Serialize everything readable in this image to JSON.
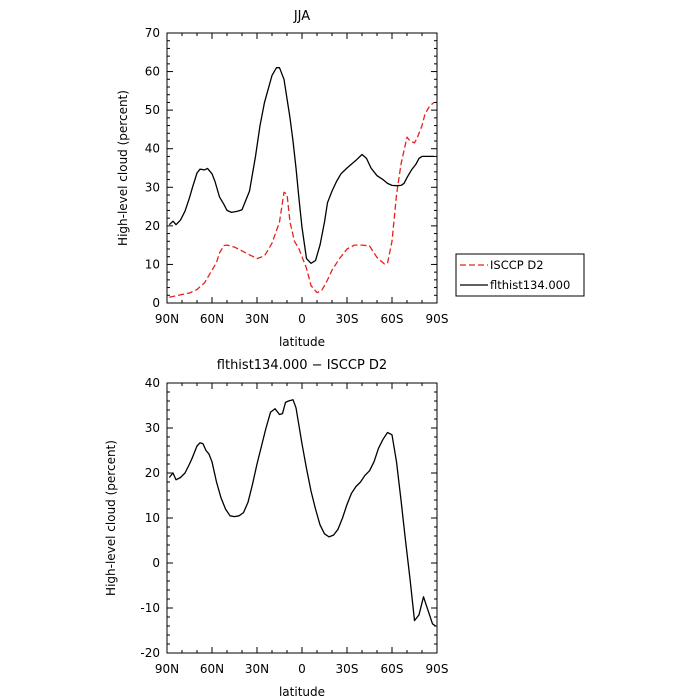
{
  "chart_data": [
    {
      "type": "line",
      "title": "JJA",
      "xlabel": "latitude",
      "ylabel": "High-level cloud (percent)",
      "xlim": [
        90,
        -90
      ],
      "ylim": [
        0,
        70
      ],
      "xticks": [
        {
          "value": 90,
          "label": "90N"
        },
        {
          "value": 60,
          "label": "60N"
        },
        {
          "value": 30,
          "label": "30N"
        },
        {
          "value": 0,
          "label": "0"
        },
        {
          "value": -30,
          "label": "30S"
        },
        {
          "value": -60,
          "label": "60S"
        },
        {
          "value": -90,
          "label": "90S"
        }
      ],
      "yticks": [
        0,
        10,
        20,
        30,
        40,
        50,
        60,
        70
      ],
      "legend_position": "outside-right",
      "series": [
        {
          "name": "ISCCP D2",
          "color": "#e8201c",
          "dash": "dashed",
          "x": [
            88.5,
            85,
            80,
            75,
            70,
            65,
            60,
            57,
            55,
            52,
            50,
            45,
            40,
            35,
            30,
            25,
            20,
            15,
            12,
            10,
            8,
            5,
            2,
            0,
            -3,
            -6,
            -10,
            -13,
            -15,
            -17,
            -20,
            -25,
            -30,
            -35,
            -40,
            -45,
            -50,
            -55,
            -57,
            -60,
            -63,
            -66,
            -70,
            -72,
            -75,
            -77,
            -80,
            -82,
            -85,
            -88
          ],
          "y": [
            1.5,
            1.8,
            2.2,
            2.6,
            3.5,
            5.2,
            8.5,
            10.5,
            13,
            14.9,
            15,
            14.5,
            13.5,
            12.5,
            11.5,
            12.2,
            15.5,
            21,
            28.7,
            28.2,
            21,
            16,
            14,
            12,
            9,
            4.5,
            2.7,
            3.2,
            4.5,
            6,
            8.5,
            11.5,
            14,
            15,
            15,
            14.8,
            11.8,
            10.1,
            10.3,
            16,
            28,
            36,
            43,
            42,
            41.5,
            43,
            46,
            49,
            51,
            52
          ]
        },
        {
          "name": "flthist134.000",
          "color": "#000000",
          "dash": "solid",
          "x": [
            88.5,
            86,
            84,
            81,
            78,
            75,
            73,
            70,
            68,
            65,
            63,
            60,
            58,
            55,
            52,
            50,
            47,
            43,
            40,
            35,
            31,
            28,
            25,
            20,
            17,
            15,
            12,
            10,
            8,
            6,
            4,
            2,
            0,
            -3,
            -6,
            -9,
            -12,
            -15,
            -17,
            -20,
            -23,
            -26,
            -30,
            -33,
            -36,
            -40,
            -43,
            -46,
            -50,
            -54,
            -57,
            -60,
            -63,
            -66,
            -68,
            -70,
            -73,
            -76,
            -78,
            -80,
            -82,
            -84,
            -86,
            -88
          ],
          "y": [
            20.3,
            21.2,
            20.3,
            21.5,
            23.8,
            27.3,
            30,
            33.7,
            34.7,
            34.5,
            34.9,
            33.5,
            31.5,
            27.5,
            25.5,
            24,
            23.5,
            23.8,
            24.2,
            29,
            38,
            46,
            52,
            59,
            61,
            61,
            58,
            53,
            48,
            42,
            35,
            27,
            19.6,
            11.5,
            10.3,
            11,
            15,
            21,
            26,
            29,
            31.5,
            33.5,
            35,
            36,
            37,
            38.5,
            37.5,
            35,
            33,
            32,
            31,
            30.5,
            30.4,
            30.5,
            31,
            32.5,
            34.5,
            36,
            37.5,
            38,
            38,
            38,
            38,
            38
          ]
        }
      ]
    },
    {
      "type": "line",
      "title": "flthist134.000 − ISCCP D2",
      "xlabel": "latitude",
      "ylabel": "High-level cloud (percent)",
      "xlim": [
        90,
        -90
      ],
      "ylim": [
        -20,
        40
      ],
      "xticks": [
        {
          "value": 90,
          "label": "90N"
        },
        {
          "value": 60,
          "label": "60N"
        },
        {
          "value": 30,
          "label": "30N"
        },
        {
          "value": 0,
          "label": "0"
        },
        {
          "value": -30,
          "label": "30S"
        },
        {
          "value": -60,
          "label": "60S"
        },
        {
          "value": -90,
          "label": "90S"
        }
      ],
      "yticks": [
        -20,
        -10,
        0,
        10,
        20,
        30,
        40
      ],
      "series": [
        {
          "name": "",
          "color": "#000000",
          "dash": "solid",
          "x": [
            88.5,
            86,
            84,
            81,
            78,
            75,
            73,
            70,
            68,
            66,
            64,
            62,
            60,
            57,
            54,
            51,
            48,
            45,
            42,
            39,
            36,
            33,
            30,
            27,
            24,
            21,
            18,
            15,
            13,
            11,
            9,
            6,
            4,
            2,
            0,
            -3,
            -6,
            -9,
            -12,
            -15,
            -18,
            -21,
            -24,
            -27,
            -30,
            -33,
            -36,
            -39,
            -42,
            -45,
            -48,
            -51,
            -54,
            -57,
            -60,
            -63,
            -66,
            -69,
            -72,
            -75,
            -78,
            -81,
            -84,
            -87,
            -89
          ],
          "y": [
            19,
            20,
            18.5,
            19,
            20,
            22,
            23.5,
            26,
            26.7,
            26.5,
            25,
            24.2,
            22.5,
            18,
            14.5,
            12,
            10.5,
            10.3,
            10.5,
            11.2,
            13.5,
            17.5,
            22,
            26,
            30,
            33.5,
            34.3,
            33,
            33.2,
            35.7,
            36,
            36.3,
            34.5,
            30.5,
            26.5,
            21,
            16,
            12,
            8.5,
            6.5,
            5.8,
            6.2,
            7.5,
            10,
            13,
            15.5,
            17,
            18,
            19.5,
            20.5,
            22.5,
            25.5,
            27.5,
            29,
            28.5,
            22.5,
            14,
            5,
            -3.5,
            -12.8,
            -11.5,
            -7.5,
            -10.5,
            -13.5,
            -14
          ]
        }
      ]
    }
  ]
}
